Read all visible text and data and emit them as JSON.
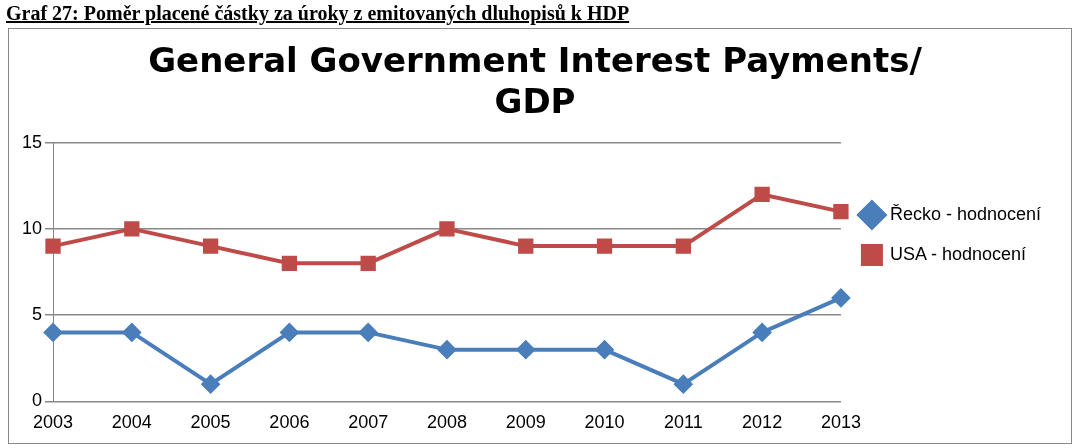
{
  "chart_data": {
    "type": "line",
    "title": "General Government Interest Payments/ GDP",
    "categories": [
      "2003",
      "2004",
      "2005",
      "2006",
      "2007",
      "2008",
      "2009",
      "2010",
      "2011",
      "2012",
      "2013"
    ],
    "series": [
      {
        "name": "Řecko - hodnocení",
        "color": "#4a7ebb",
        "values": [
          4,
          4,
          1,
          4,
          4,
          3,
          3,
          3,
          1,
          4,
          6
        ],
        "marker": "diamond"
      },
      {
        "name": "USA - hodnocení",
        "color": "#be4b48",
        "values": [
          9,
          10,
          9,
          8,
          8,
          10,
          9,
          9,
          9,
          12,
          11
        ],
        "marker": "square"
      }
    ],
    "ylim": [
      0,
      15
    ],
    "yticks": [
      0,
      5,
      10,
      15
    ],
    "grid": "y",
    "legend": "right",
    "line_style": "solid",
    "annotations": [
      "Graf 27: Poměr placené částky za úroky z emitovaných dluhopisů k HDP"
    ]
  }
}
